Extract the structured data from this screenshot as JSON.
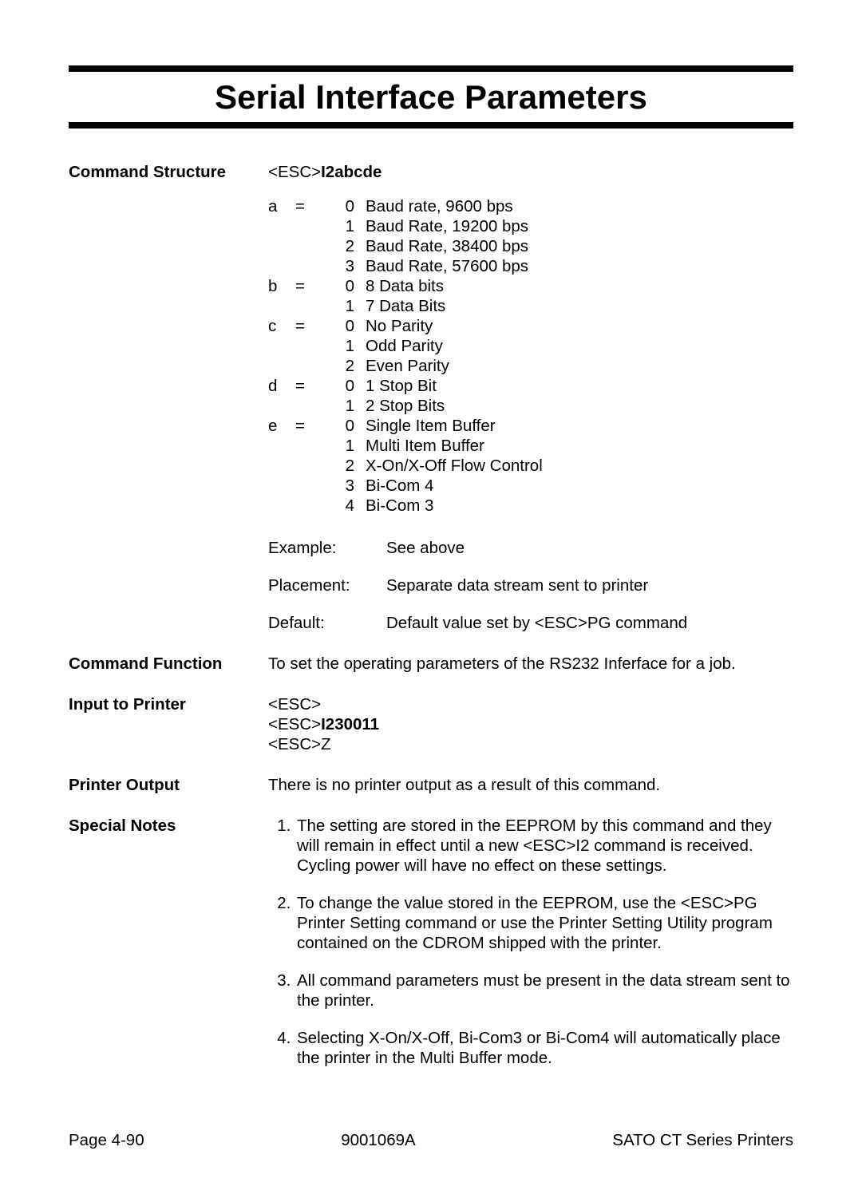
{
  "title": "Serial Interface Parameters",
  "labels": {
    "command_structure": "Command Structure",
    "command_function": "Command Function",
    "input_to_printer": "Input to Printer",
    "printer_output": "Printer Output",
    "special_notes": "Special Notes"
  },
  "command_structure": {
    "command_prefix": "<ESC>",
    "command_bold": "I2abcde",
    "params": [
      {
        "var": "a",
        "eq": "=",
        "values": [
          {
            "num": "0",
            "desc": "Baud rate, 9600 bps"
          },
          {
            "num": "1",
            "desc": "Baud Rate, 19200 bps"
          },
          {
            "num": "2",
            "desc": "Baud Rate, 38400 bps"
          },
          {
            "num": "3",
            "desc": "Baud Rate, 57600 bps"
          }
        ]
      },
      {
        "var": "b",
        "eq": "=",
        "values": [
          {
            "num": "0",
            "desc": "8 Data bits"
          },
          {
            "num": "1",
            "desc": "7 Data Bits"
          }
        ]
      },
      {
        "var": "c",
        "eq": "=",
        "values": [
          {
            "num": "0",
            "desc": "No Parity"
          },
          {
            "num": "1",
            "desc": "Odd Parity"
          },
          {
            "num": "2",
            "desc": "Even Parity"
          }
        ]
      },
      {
        "var": "d",
        "eq": "=",
        "values": [
          {
            "num": "0",
            "desc": "1 Stop Bit"
          },
          {
            "num": "1",
            "desc": "2 Stop Bits"
          }
        ]
      },
      {
        "var": "e",
        "eq": "=",
        "values": [
          {
            "num": "0",
            "desc": "Single Item Buffer"
          },
          {
            "num": "1",
            "desc": "Multi Item Buffer"
          },
          {
            "num": "2",
            "desc": "X-On/X-Off Flow Control"
          },
          {
            "num": "3",
            "desc": "Bi-Com 4"
          },
          {
            "num": "4",
            "desc": "Bi-Com 3"
          }
        ]
      }
    ],
    "example_label": "Example:",
    "example_value": "See above",
    "placement_label": "Placement:",
    "placement_value": "Separate data stream sent to printer",
    "default_label": "Default:",
    "default_value": "Default value set by <ESC>PG command"
  },
  "command_function_text": "To set the operating parameters of the RS232 Inferface for a job.",
  "input_to_printer_lines": [
    {
      "pre": "<ESC>",
      "bold": ""
    },
    {
      "pre": "<ESC>",
      "bold": "I230011"
    },
    {
      "pre": "<ESC>Z",
      "bold": ""
    }
  ],
  "printer_output_text": "There is no printer output as a result of this command.",
  "special_notes": [
    "The setting are stored in the EEPROM by this command and they will remain in effect until a new <ESC>I2 command is received. Cycling power will have no effect on these settings.",
    "To change the value stored in the EEPROM, use the <ESC>PG Printer Setting command or use the Printer Setting Utility program contained on the CDROM shipped with the printer.",
    "All command parameters must be present in the data stream sent to the printer.",
    "Selecting X-On/X-Off, Bi-Com3 or Bi-Com4 will automatically place the printer in the Multi Buffer mode."
  ],
  "footer": {
    "left": "Page 4-90",
    "center": "9001069A",
    "right": "SATO CT Series Printers"
  }
}
